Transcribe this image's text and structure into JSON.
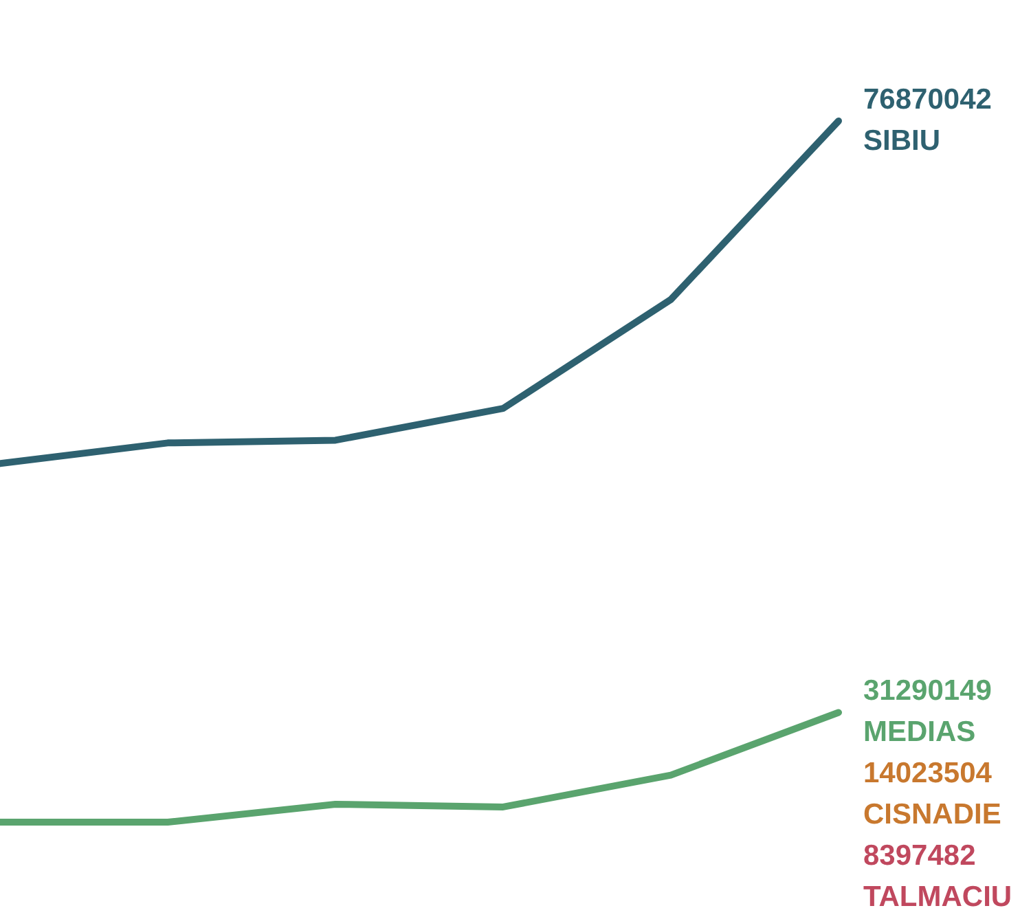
{
  "chart_data": {
    "type": "line",
    "categories": [
      null,
      null,
      null,
      null,
      null,
      null
    ],
    "tick_labels": false,
    "grid": false,
    "legend": false,
    "marker": "none",
    "line_style": "solid",
    "series": [
      {
        "name": "SIBIU",
        "color": "#2e6170",
        "values": [
          50470000,
          52060000,
          52270000,
          54720000,
          63110000,
          76870042
        ],
        "value_labels": [
          null,
          null,
          null,
          null,
          null,
          "76870042"
        ]
      },
      {
        "name": "MEDIAS",
        "color": "#5aa46e",
        "values": [
          22840000,
          22840000,
          24220000,
          24010000,
          26460000,
          31290149
        ],
        "value_labels": [
          null,
          null,
          null,
          null,
          null,
          "31290149"
        ]
      },
      {
        "name": "CISNADIE",
        "color": "#c8782e",
        "values": [
          null,
          null,
          null,
          null,
          null,
          null
        ],
        "value_labels": [
          null,
          null,
          null,
          null,
          null,
          "14023504"
        ]
      },
      {
        "name": "TALMACIU",
        "color": "#c0485e",
        "values": [
          null,
          null,
          null,
          null,
          null,
          null
        ],
        "value_labels": [
          null,
          null,
          null,
          null,
          null,
          "8397482"
        ]
      }
    ]
  }
}
